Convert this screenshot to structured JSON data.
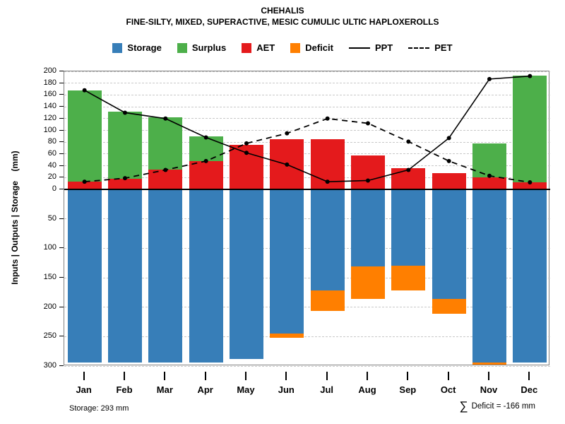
{
  "chart_data": {
    "type": "bar",
    "title": "CHEHALIS",
    "subtitle": "FINE-SILTY, MIXED, SUPERACTIVE, MESIC CUMULIC ULTIC HAPLOXEROLLS",
    "ylabel": "Inputs | Outputs | Storage    (mm)",
    "categories": [
      "Jan",
      "Feb",
      "Mar",
      "Apr",
      "May",
      "Jun",
      "Jul",
      "Aug",
      "Sep",
      "Oct",
      "Nov",
      "Dec"
    ],
    "top_axis": {
      "min": 0,
      "max": 200,
      "tick_step": 20
    },
    "bottom_axis": {
      "min": 0,
      "max": 300,
      "tick_step": 50
    },
    "grid": true,
    "legend_position": "top-center",
    "series": [
      {
        "name": "AET",
        "type": "bar-up",
        "color": "#E41A1C",
        "values": [
          13,
          18,
          33,
          48,
          75,
          85,
          85,
          57,
          36,
          27,
          20,
          12
        ]
      },
      {
        "name": "Surplus",
        "type": "bar-up-stacked",
        "color": "#4DAF4A",
        "values": [
          155,
          114,
          89,
          42,
          0,
          0,
          0,
          0,
          0,
          0,
          58,
          181
        ]
      },
      {
        "name": "Storage",
        "type": "bar-down",
        "color": "#377EB8",
        "values": [
          293,
          293,
          293,
          293,
          287,
          243,
          170,
          130,
          128,
          185,
          293,
          293
        ]
      },
      {
        "name": "Deficit",
        "type": "bar-down-stacked",
        "color": "#FF7F00",
        "values": [
          0,
          0,
          0,
          0,
          0,
          8,
          35,
          55,
          42,
          25,
          3,
          0
        ]
      },
      {
        "name": "PPT",
        "type": "line-solid",
        "color": "#000000",
        "values": [
          168,
          130,
          120,
          88,
          62,
          42,
          13,
          15,
          33,
          87,
          187,
          192
        ]
      },
      {
        "name": "PET",
        "type": "line-dashed",
        "color": "#000000",
        "values": [
          13,
          19,
          33,
          48,
          78,
          95,
          120,
          112,
          81,
          48,
          23,
          12
        ]
      }
    ],
    "legend": [
      {
        "label": "Storage",
        "type": "box",
        "color": "#377EB8"
      },
      {
        "label": "Surplus",
        "type": "box",
        "color": "#4DAF4A"
      },
      {
        "label": "AET",
        "type": "box",
        "color": "#E41A1C"
      },
      {
        "label": "Deficit",
        "type": "box",
        "color": "#FF7F00"
      },
      {
        "label": "PPT",
        "type": "line",
        "style": "solid"
      },
      {
        "label": "PET",
        "type": "line",
        "style": "dashed"
      }
    ],
    "annotations": {
      "storage_note": "Storage: 293 mm",
      "deficit_sigma": "∑",
      "deficit_note": "Deficit = -166 mm"
    }
  }
}
